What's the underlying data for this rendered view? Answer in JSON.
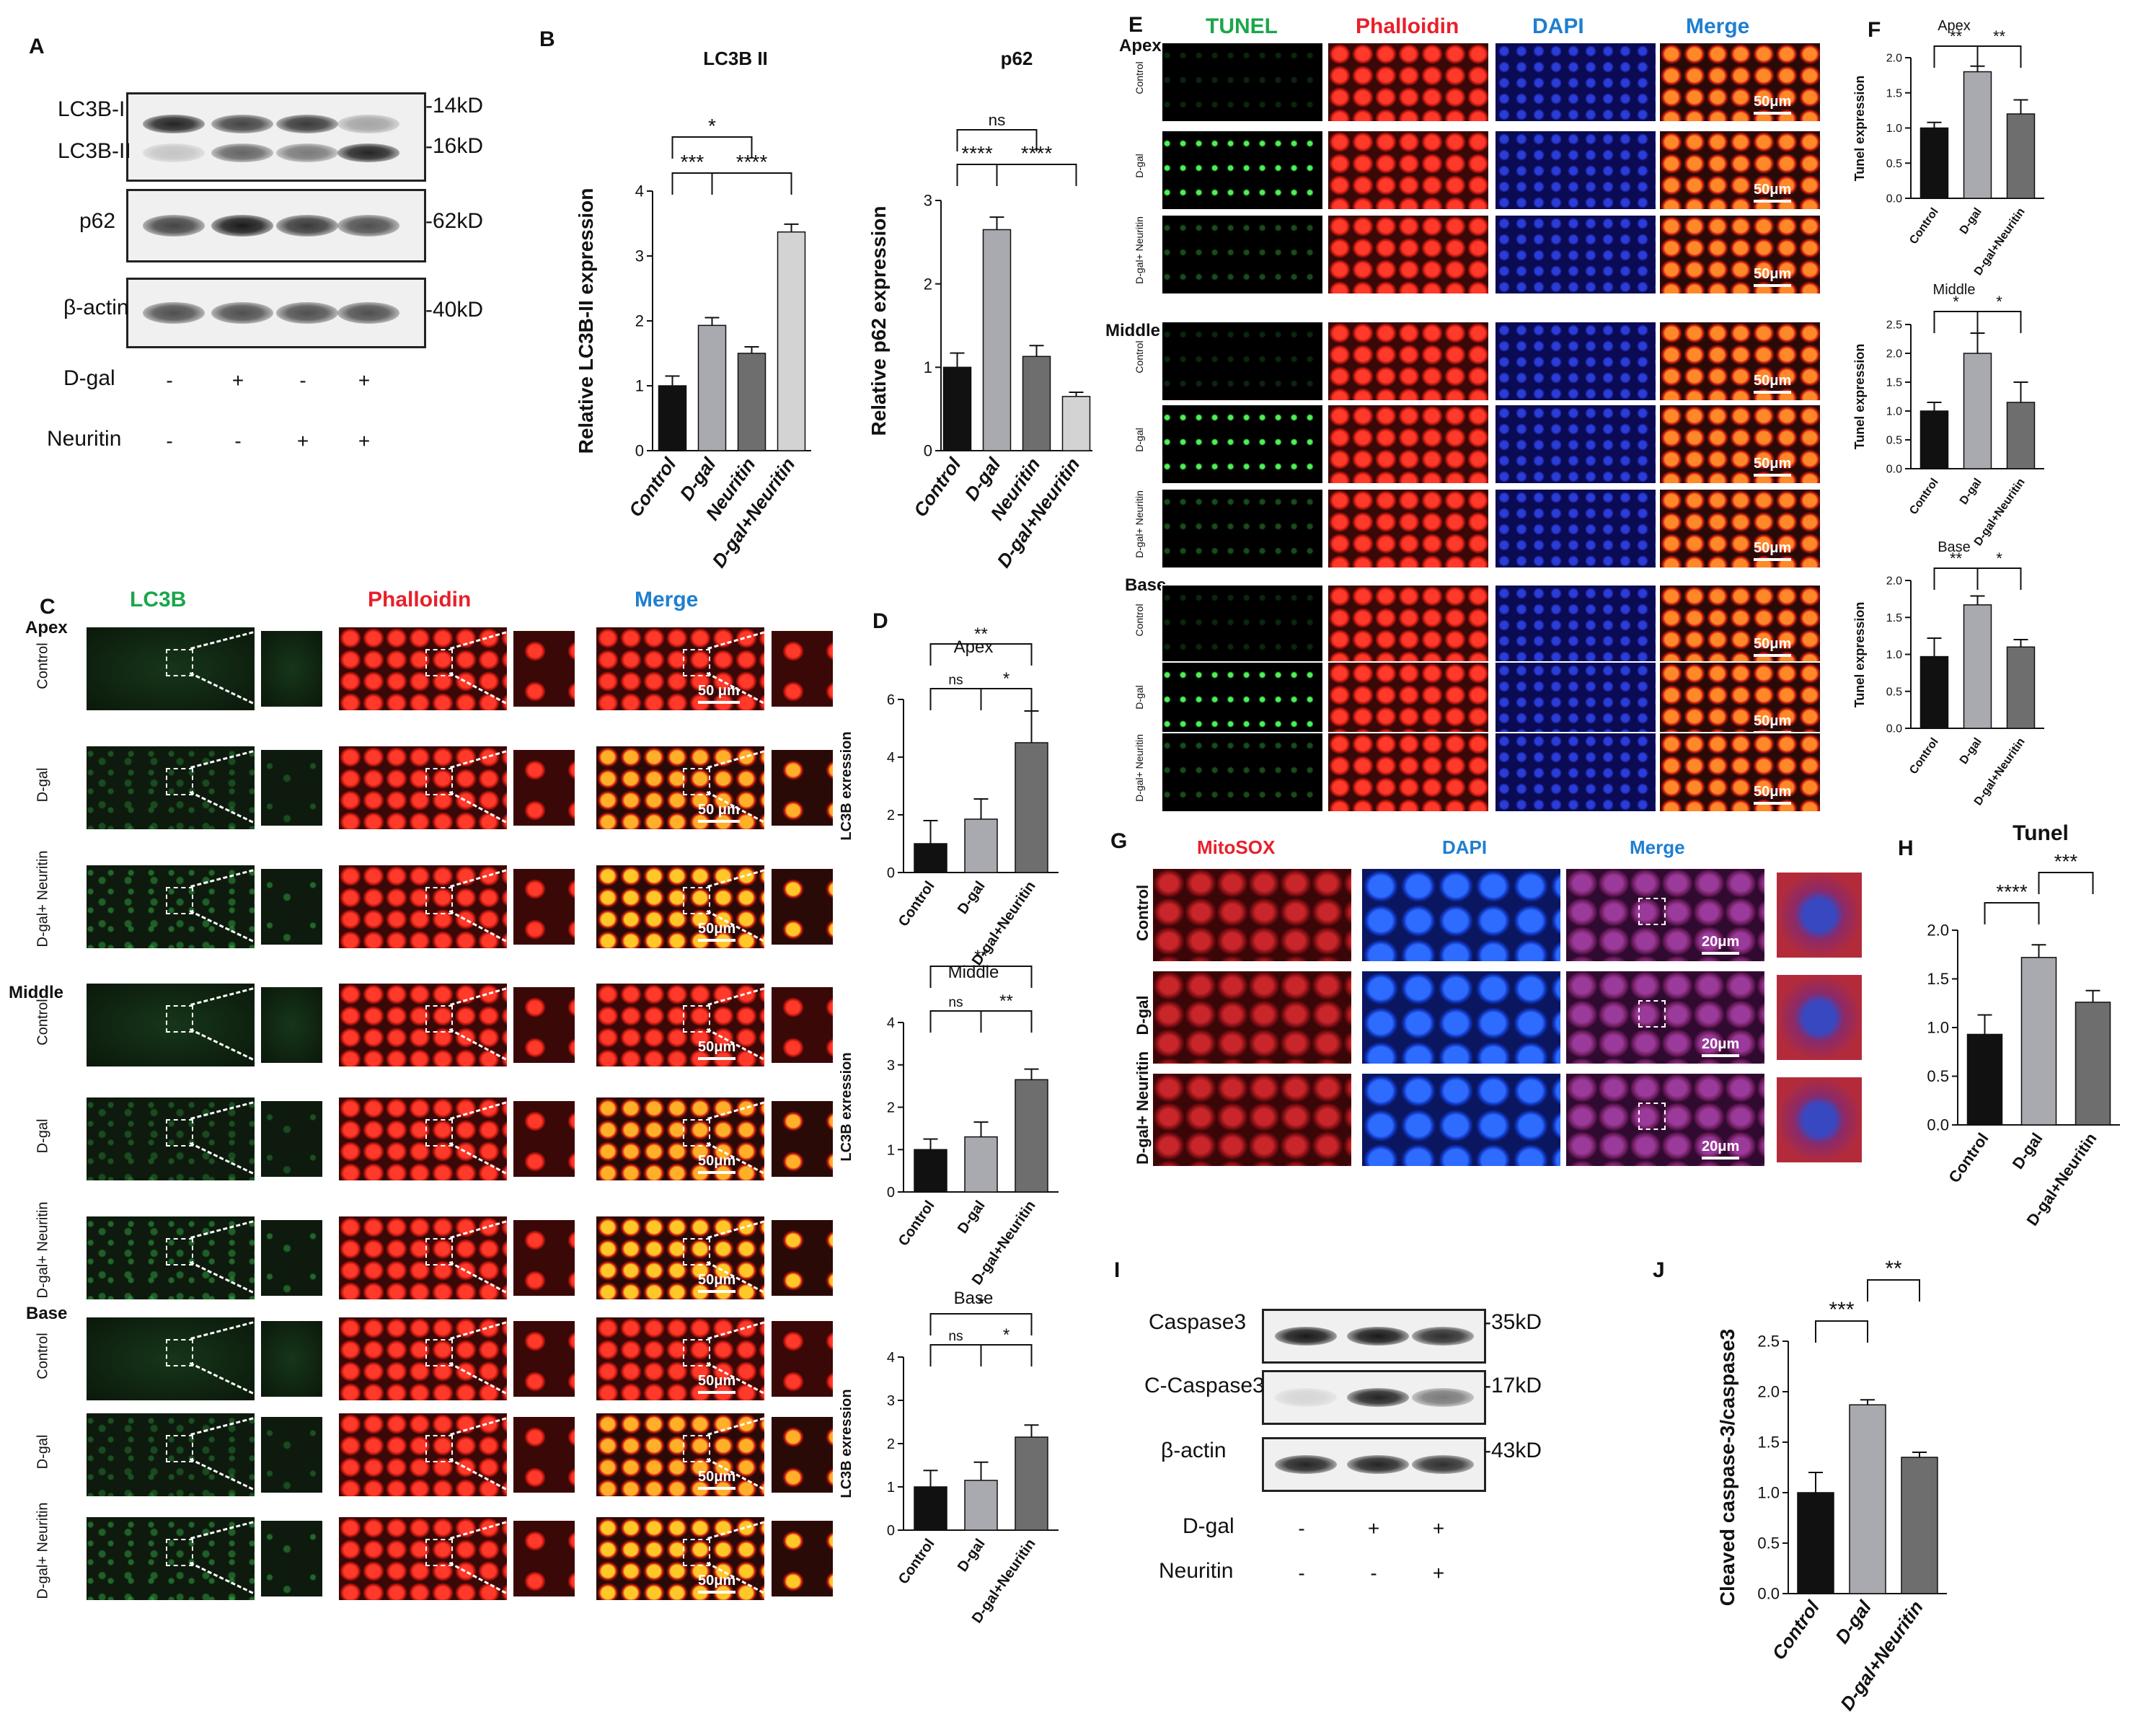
{
  "panels": {
    "A": "A",
    "B": "B",
    "C": "C",
    "D": "D",
    "E": "E",
    "F": "F",
    "G": "G",
    "H": "H",
    "I": "I",
    "J": "J"
  },
  "blotA": {
    "rows": [
      "LC3B-I",
      "LC3B-II",
      "p62",
      "β-actin"
    ],
    "kd": [
      "14kD",
      "16kD",
      "62kD",
      "40kD"
    ],
    "treat_labels": [
      "D-gal",
      "Neuritin"
    ],
    "dgal": [
      "-",
      "+",
      "-",
      "+"
    ],
    "neuritin": [
      "-",
      "-",
      "+",
      "+"
    ]
  },
  "blotI": {
    "rows": [
      "Caspase3",
      "C-Caspase3",
      "β-actin"
    ],
    "kd": [
      "35kD",
      "17kD",
      "43kD"
    ],
    "treat_labels": [
      "D-gal",
      "Neuritin"
    ],
    "dgal": [
      "-",
      "+",
      "+"
    ],
    "neuritin": [
      "-",
      "-",
      "+"
    ]
  },
  "panelC": {
    "cols": [
      "LC3B",
      "Phalloidin",
      "Merge"
    ],
    "col_colors": [
      "#1aa64a",
      "#e8202a",
      "#1f7fd0"
    ],
    "sections": [
      "Apex",
      "Middle",
      "Base"
    ],
    "rows": [
      "Control",
      "D-gal",
      "D-gal+\nNeuritin"
    ],
    "scales": [
      "50 μm",
      "50 μm",
      "50μm",
      "50μm",
      "50μm",
      "50μm",
      "50μm",
      "50μm",
      "50μm"
    ]
  },
  "panelE": {
    "cols": [
      "TUNEL",
      "Phalloidin",
      "DAPI",
      "Merge"
    ],
    "col_colors": [
      "#1aa64a",
      "#e8202a",
      "#1f7fd0",
      "#1f7fd0"
    ],
    "sections": [
      "Apex",
      "Middle",
      "Base"
    ],
    "rows": [
      "Control",
      "D-gal",
      "D-gal+\nNeuritin"
    ],
    "scale": "50μm"
  },
  "panelG": {
    "cols": [
      "MitoSOX",
      "DAPI",
      "Merge"
    ],
    "col_colors": [
      "#e8202a",
      "#1f7fd0",
      "#1f7fd0"
    ],
    "rows": [
      "Control",
      "D-gal",
      "D-gal+\nNeuritin"
    ],
    "scale": "20μm"
  },
  "chart_data": [
    {
      "id": "B1",
      "type": "bar",
      "title": "LC3B II",
      "ylabel": "Relative LC3B-II expression",
      "categories": [
        "Control",
        "D-gal",
        "Neuritin",
        "D-gal+Neuritin"
      ],
      "values": [
        1.0,
        1.93,
        1.5,
        3.37
      ],
      "errors": [
        0.15,
        0.12,
        0.1,
        0.12
      ],
      "ylim": [
        0,
        4
      ],
      "yticks": [
        "0",
        "1",
        "2",
        "3",
        "4"
      ],
      "colors": [
        "#111111",
        "#a9a9b0",
        "#6e6e6e",
        "#d3d3d3"
      ],
      "sig": [
        {
          "from": 0,
          "to": 1,
          "label": "***",
          "level": 0
        },
        {
          "from": 1,
          "to": 3,
          "label": "****",
          "level": 0
        },
        {
          "from": 0,
          "to": 2,
          "label": "*",
          "level": 1
        }
      ]
    },
    {
      "id": "B2",
      "type": "bar",
      "title": "p62",
      "ylabel": "Relative p62 expression",
      "categories": [
        "Control",
        "D-gal",
        "Neuritin",
        "D-gal+Neuritin"
      ],
      "values": [
        1.0,
        2.65,
        1.13,
        0.65
      ],
      "errors": [
        0.17,
        0.15,
        0.13,
        0.05
      ],
      "ylim": [
        0,
        3
      ],
      "yticks": [
        "0",
        "1",
        "2",
        "3"
      ],
      "colors": [
        "#111111",
        "#a9a9b0",
        "#6e6e6e",
        "#d3d3d3"
      ],
      "sig": [
        {
          "from": 0,
          "to": 1,
          "label": "****",
          "level": 0
        },
        {
          "from": 1,
          "to": 3,
          "label": "****",
          "level": 0
        },
        {
          "from": 0,
          "to": 2,
          "label": "ns",
          "level": 1
        }
      ]
    },
    {
      "id": "D1",
      "type": "bar",
      "title": "Apex",
      "ylabel": "LC3B exression",
      "categories": [
        "Control",
        "D-gal",
        "D-gal+Neuritin"
      ],
      "values": [
        1.0,
        1.85,
        4.5
      ],
      "errors": [
        0.8,
        0.7,
        1.1
      ],
      "ylim": [
        0,
        6
      ],
      "yticks": [
        "0",
        "2",
        "4",
        "6"
      ],
      "colors": [
        "#111111",
        "#a9a9b0",
        "#6e6e6e"
      ],
      "sig": [
        {
          "from": 0,
          "to": 1,
          "label": "ns",
          "level": 0
        },
        {
          "from": 1,
          "to": 2,
          "label": "*",
          "level": 0
        },
        {
          "from": 0,
          "to": 2,
          "label": "**",
          "level": 1
        }
      ]
    },
    {
      "id": "D2",
      "type": "bar",
      "title": "Middle",
      "ylabel": "LC3B exression",
      "categories": [
        "Control",
        "D-gal",
        "D-gal+Neuritin"
      ],
      "values": [
        1.0,
        1.3,
        2.65
      ],
      "errors": [
        0.25,
        0.35,
        0.25
      ],
      "ylim": [
        0,
        4
      ],
      "yticks": [
        "0",
        "1",
        "2",
        "3",
        "4"
      ],
      "colors": [
        "#111111",
        "#a9a9b0",
        "#6e6e6e"
      ],
      "sig": [
        {
          "from": 0,
          "to": 1,
          "label": "ns",
          "level": 0
        },
        {
          "from": 1,
          "to": 2,
          "label": "**",
          "level": 0
        },
        {
          "from": 0,
          "to": 2,
          "label": "**",
          "level": 1
        }
      ]
    },
    {
      "id": "D3",
      "type": "bar",
      "title": "Base",
      "ylabel": "LC3B exression",
      "categories": [
        "Control",
        "D-gal",
        "D-gal+Neuritin"
      ],
      "values": [
        1.0,
        1.15,
        2.15
      ],
      "errors": [
        0.38,
        0.42,
        0.28
      ],
      "ylim": [
        0,
        4
      ],
      "yticks": [
        "0",
        "1",
        "2",
        "3",
        "4"
      ],
      "colors": [
        "#111111",
        "#a9a9b0",
        "#6e6e6e"
      ],
      "sig": [
        {
          "from": 0,
          "to": 1,
          "label": "ns",
          "level": 0
        },
        {
          "from": 1,
          "to": 2,
          "label": "*",
          "level": 0
        },
        {
          "from": 0,
          "to": 2,
          "label": "*",
          "level": 1
        }
      ]
    },
    {
      "id": "F1",
      "type": "bar",
      "title": "Apex",
      "ylabel": "Tunel expression",
      "categories": [
        "Control",
        "D-gal",
        "D-gal+Neuritin"
      ],
      "values": [
        1.0,
        1.8,
        1.2
      ],
      "errors": [
        0.08,
        0.08,
        0.2
      ],
      "ylim": [
        0,
        2
      ],
      "yticks": [
        "0.0",
        "0.5",
        "1.0",
        "1.5",
        "2.0"
      ],
      "colors": [
        "#111111",
        "#a9a9b0",
        "#6e6e6e"
      ],
      "sig": [
        {
          "from": 0,
          "to": 1,
          "label": "**",
          "level": 0
        },
        {
          "from": 1,
          "to": 2,
          "label": "**",
          "level": 0
        }
      ]
    },
    {
      "id": "F2",
      "type": "bar",
      "title": "Middle",
      "ylabel": "Tunel expression",
      "categories": [
        "Control",
        "D-gal",
        "D-gal+Neuritin"
      ],
      "values": [
        1.0,
        2.0,
        1.15
      ],
      "errors": [
        0.15,
        0.35,
        0.35
      ],
      "ylim": [
        0,
        2.5
      ],
      "yticks": [
        "0.0",
        "0.5",
        "1.0",
        "1.5",
        "2.0",
        "2.5"
      ],
      "colors": [
        "#111111",
        "#a9a9b0",
        "#6e6e6e"
      ],
      "sig": [
        {
          "from": 0,
          "to": 1,
          "label": "*",
          "level": 0
        },
        {
          "from": 1,
          "to": 2,
          "label": "*",
          "level": 0
        }
      ]
    },
    {
      "id": "F3",
      "type": "bar",
      "title": "Base",
      "ylabel": "Tunel expression",
      "categories": [
        "Control",
        "D-gal",
        "D-gal+Neuritin"
      ],
      "values": [
        0.97,
        1.67,
        1.1
      ],
      "errors": [
        0.25,
        0.12,
        0.1
      ],
      "ylim": [
        0,
        2
      ],
      "yticks": [
        "0.0",
        "0.5",
        "1.0",
        "1.5",
        "2.0"
      ],
      "colors": [
        "#111111",
        "#a9a9b0",
        "#6e6e6e"
      ],
      "sig": [
        {
          "from": 0,
          "to": 1,
          "label": "**",
          "level": 0
        },
        {
          "from": 1,
          "to": 2,
          "label": "*",
          "level": 0
        }
      ]
    },
    {
      "id": "H",
      "type": "bar",
      "title": "Tunel",
      "ylabel": "",
      "categories": [
        "Control",
        "D-gal",
        "D-gal+Neuritin"
      ],
      "values": [
        0.93,
        1.72,
        1.26
      ],
      "errors": [
        0.2,
        0.13,
        0.12
      ],
      "ylim": [
        0,
        2
      ],
      "yticks": [
        "0.0",
        "0.5",
        "1.0",
        "1.5",
        "2.0"
      ],
      "colors": [
        "#111111",
        "#a9a9b0",
        "#6e6e6e"
      ],
      "sig": [
        {
          "from": 0,
          "to": 1,
          "label": "****",
          "level": 0
        },
        {
          "from": 1,
          "to": 2,
          "label": "***",
          "level": 1
        }
      ]
    },
    {
      "id": "J",
      "type": "bar",
      "title": "",
      "ylabel": "Cleaved caspase-3/caspase3",
      "categories": [
        "Control",
        "D-gal",
        "D-gal+Neuritin"
      ],
      "values": [
        1.0,
        1.87,
        1.35
      ],
      "errors": [
        0.2,
        0.05,
        0.05
      ],
      "ylim": [
        0,
        2.5
      ],
      "yticks": [
        "0.0",
        "0.5",
        "1.0",
        "1.5",
        "2.0",
        "2.5"
      ],
      "colors": [
        "#111111",
        "#a9a9b0",
        "#6e6e6e"
      ],
      "sig": [
        {
          "from": 0,
          "to": 1,
          "label": "***",
          "level": 0
        },
        {
          "from": 1,
          "to": 2,
          "label": "**",
          "level": 1
        }
      ]
    }
  ]
}
